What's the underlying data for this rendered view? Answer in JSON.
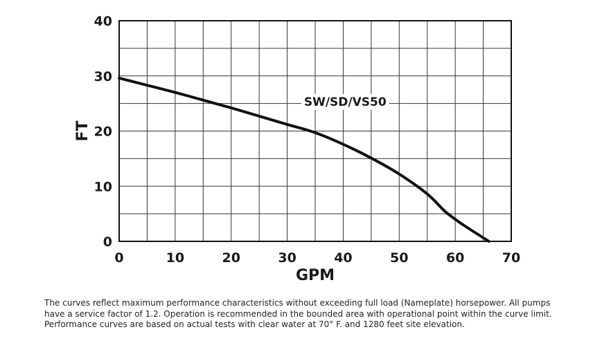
{
  "chart_data": {
    "type": "line",
    "xlabel": "GPM",
    "ylabel": "FT",
    "xlim": [
      0,
      70
    ],
    "ylim": [
      0,
      40
    ],
    "xticks": [
      0,
      10,
      20,
      30,
      40,
      50,
      60,
      70
    ],
    "yticks": [
      0,
      10,
      20,
      30,
      40
    ],
    "x_grid_step": 5,
    "y_grid_step": 5,
    "grid": true,
    "series": [
      {
        "name": "SW/SD/VS50",
        "x": [
          0,
          5,
          10,
          15,
          20,
          25,
          30,
          35,
          40,
          45,
          50,
          55,
          58,
          60,
          62,
          66
        ],
        "y": [
          29.6,
          28.3,
          27,
          25.6,
          24.2,
          22.7,
          21.2,
          19.7,
          17.6,
          15.1,
          12.2,
          8.6,
          5.6,
          4,
          2.6,
          0
        ]
      }
    ]
  },
  "footnote": {
    "line1": "The curves reflect maximum performance characteristics without exceeding full load (Nameplate) horsepower. All pumps",
    "line2": "have a service factor of 1.2. Operation is recommended in the bounded area with operational point within the curve limit.",
    "line3": "Performance curves are based on actual tests with clear water at 70° F. and 1280 feet site elevation."
  },
  "colors": {
    "line": "#111111",
    "grid": "#333333",
    "text": "#1a1a1a"
  }
}
